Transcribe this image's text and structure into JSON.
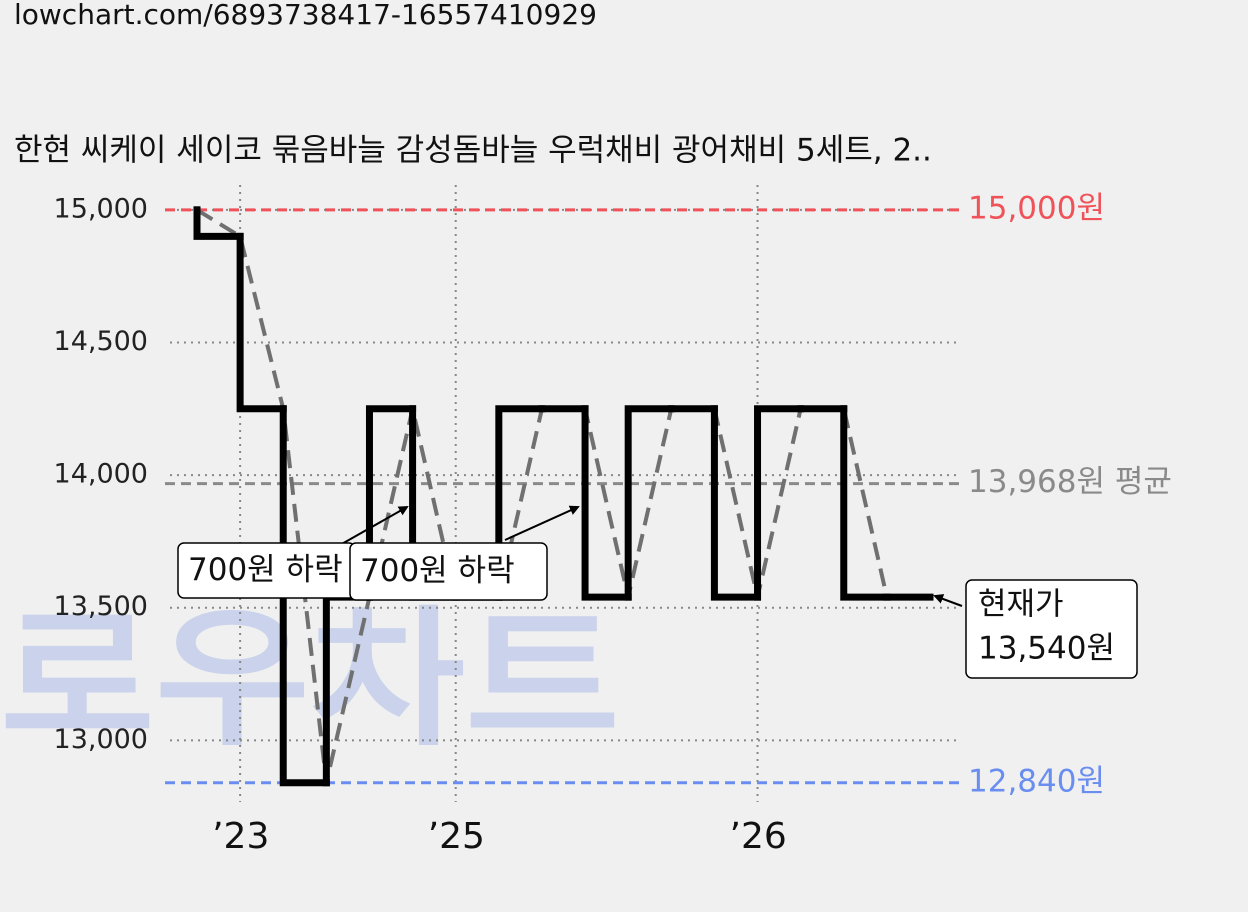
{
  "url": "lowchart.com/6893738417-16557410929",
  "watermark": "로우차트",
  "chart_data": {
    "type": "line",
    "step": true,
    "title": "한현 씨케이 세이코 묶음바늘 감성돔바늘 우럭채비 광어채비 5세트, 2..",
    "categories": [
      null,
      "’23",
      null,
      null,
      null,
      null,
      "’25",
      null,
      null,
      null,
      null,
      null,
      null,
      "’26",
      null,
      null,
      null,
      null
    ],
    "series": [
      {
        "color": "#000000",
        "values": [
          15000,
          14900,
          14250,
          12840,
          13540,
          14250,
          13540,
          13540,
          14250,
          14250,
          13540,
          14250,
          14250,
          13540,
          14250,
          14250,
          13540,
          13540
        ]
      }
    ],
    "trend_color": "#707070",
    "ylim": [
      12775,
      15075
    ],
    "yticks": [
      {
        "value": 13000,
        "label": "13,000"
      },
      {
        "value": 13500,
        "label": "13,500"
      },
      {
        "value": 14000,
        "label": "14,000"
      },
      {
        "value": 14500,
        "label": "14,500"
      },
      {
        "value": 15000,
        "label": "15,000"
      }
    ],
    "grid": true,
    "reference_lines": [
      {
        "value": 15000,
        "label": "15,000원",
        "color": "#f0525a"
      },
      {
        "value": 13968,
        "label": "13,968원 평균",
        "color": "#8a8a8a"
      },
      {
        "value": 12840,
        "label": "12,840원",
        "color": "#6a8ef0"
      }
    ],
    "annotations": [
      {
        "text": "700원 하락"
      },
      {
        "text": "700원 하락"
      },
      {
        "text": [
          "현재가",
          "13,540원"
        ]
      }
    ]
  }
}
